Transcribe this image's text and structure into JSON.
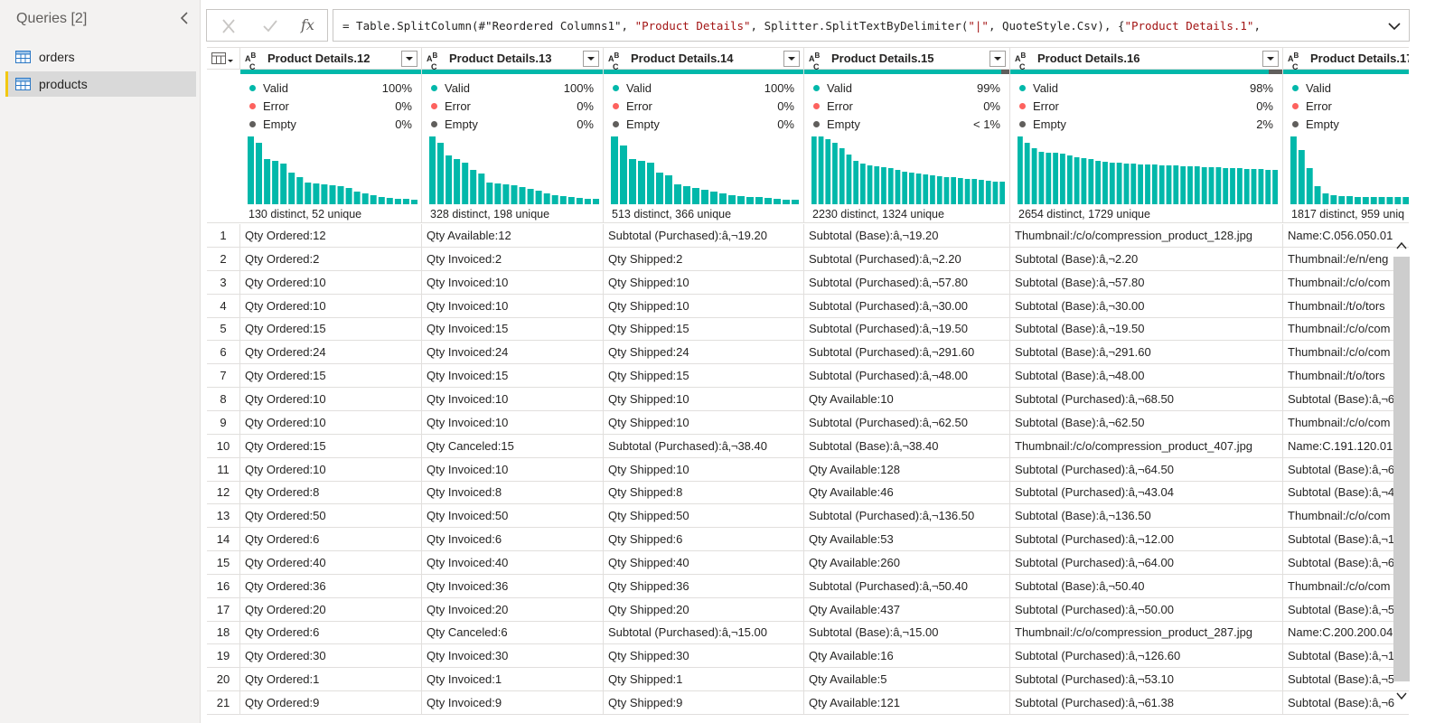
{
  "queries": {
    "title": "Queries [2]",
    "items": [
      {
        "label": "orders",
        "selected": false
      },
      {
        "label": "products",
        "selected": true
      }
    ]
  },
  "formula": {
    "parts": [
      {
        "t": "= Table.SplitColumn(#\"Reordered Columns1\", ",
        "s": false
      },
      {
        "t": "\"Product Details\"",
        "s": true
      },
      {
        "t": ", Splitter.SplitTextByDelimiter(",
        "s": false
      },
      {
        "t": "\"|\"",
        "s": true
      },
      {
        "t": ", QuoteStyle.Csv), {",
        "s": false
      },
      {
        "t": "\"Product Details.1\"",
        "s": true
      },
      {
        "t": ",",
        "s": false
      }
    ],
    "fx_label": "fx"
  },
  "colors": {
    "valid": "#01b8aa",
    "error": "#fd625e",
    "empty": "#605e5c",
    "accent": "#f2c811"
  },
  "columns": [
    {
      "name": "Product Details.12",
      "valid": "100%",
      "error": "0%",
      "empty": "0%",
      "errfrac": 0,
      "distinct": "130 distinct, 52 unique",
      "hist": [
        75,
        68,
        50,
        48,
        45,
        35,
        30,
        24,
        23,
        22,
        21,
        20,
        18,
        14,
        12,
        10,
        8,
        7,
        6,
        6,
        5
      ]
    },
    {
      "name": "Product Details.13",
      "valid": "100%",
      "error": "0%",
      "empty": "0%",
      "errfrac": 0,
      "distinct": "328 distinct, 198 unique",
      "hist": [
        75,
        68,
        54,
        50,
        46,
        38,
        34,
        24,
        23,
        22,
        21,
        19,
        17,
        15,
        12,
        10,
        9,
        8,
        7,
        6,
        6
      ]
    },
    {
      "name": "Product Details.14",
      "valid": "100%",
      "error": "0%",
      "empty": "0%",
      "errfrac": 0,
      "distinct": "513 distinct, 366 unique",
      "hist": [
        75,
        65,
        50,
        48,
        46,
        35,
        32,
        22,
        20,
        18,
        16,
        14,
        12,
        10,
        9,
        8,
        8,
        7,
        6,
        5,
        5
      ]
    },
    {
      "name": "Product Details.15",
      "valid": "99%",
      "error": "0%",
      "empty": "< 1%",
      "errfrac": 0.04,
      "distinct": "2230 distinct, 1324 unique",
      "hist": [
        75,
        75,
        72,
        68,
        62,
        55,
        48,
        45,
        43,
        42,
        41,
        40,
        38,
        36,
        35,
        34,
        33,
        32,
        31,
        30,
        30,
        29,
        28,
        28,
        27,
        26,
        25,
        25
      ]
    },
    {
      "name": "Product Details.16",
      "valid": "98%",
      "error": "0%",
      "empty": "2%",
      "errfrac": 0.05,
      "distinct": "2654 distinct, 1729 unique",
      "hist": [
        75,
        68,
        62,
        58,
        57,
        57,
        56,
        54,
        52,
        51,
        50,
        48,
        47,
        46,
        46,
        45,
        45,
        44,
        44,
        44,
        43,
        43,
        43,
        42,
        42,
        42,
        41,
        41,
        41,
        40,
        40,
        40,
        39,
        39,
        39,
        38,
        38
      ]
    },
    {
      "name": "Product Details.17",
      "valid": "",
      "error": "",
      "empty": "",
      "errfrac": 0,
      "distinct": "1817 distinct, 959 uniq",
      "hist": [
        75,
        60,
        40,
        20,
        12,
        10,
        9,
        9,
        8,
        8,
        8,
        8,
        8,
        8,
        8,
        8
      ]
    }
  ],
  "quality_labels": {
    "valid": "Valid",
    "error": "Error",
    "empty": "Empty"
  },
  "rows": [
    [
      "1",
      "Qty Ordered:12",
      "Qty Available:12",
      "Subtotal (Purchased):â‚¬19.20",
      "Subtotal (Base):â‚¬19.20",
      "Thumbnail:/c/o/compression_product_128.jpg",
      "Name:C.056.050.01"
    ],
    [
      "2",
      "Qty Ordered:2",
      "Qty Invoiced:2",
      "Qty Shipped:2",
      "Subtotal (Purchased):â‚¬2.20",
      "Subtotal (Base):â‚¬2.20",
      "Thumbnail:/e/n/eng"
    ],
    [
      "3",
      "Qty Ordered:10",
      "Qty Invoiced:10",
      "Qty Shipped:10",
      "Subtotal (Purchased):â‚¬57.80",
      "Subtotal (Base):â‚¬57.80",
      "Thumbnail:/c/o/com"
    ],
    [
      "4",
      "Qty Ordered:10",
      "Qty Invoiced:10",
      "Qty Shipped:10",
      "Subtotal (Purchased):â‚¬30.00",
      "Subtotal (Base):â‚¬30.00",
      "Thumbnail:/t/o/tors"
    ],
    [
      "5",
      "Qty Ordered:15",
      "Qty Invoiced:15",
      "Qty Shipped:15",
      "Subtotal (Purchased):â‚¬19.50",
      "Subtotal (Base):â‚¬19.50",
      "Thumbnail:/c/o/com"
    ],
    [
      "6",
      "Qty Ordered:24",
      "Qty Invoiced:24",
      "Qty Shipped:24",
      "Subtotal (Purchased):â‚¬291.60",
      "Subtotal (Base):â‚¬291.60",
      "Thumbnail:/c/o/com"
    ],
    [
      "7",
      "Qty Ordered:15",
      "Qty Invoiced:15",
      "Qty Shipped:15",
      "Subtotal (Purchased):â‚¬48.00",
      "Subtotal (Base):â‚¬48.00",
      "Thumbnail:/t/o/tors"
    ],
    [
      "8",
      "Qty Ordered:10",
      "Qty Invoiced:10",
      "Qty Shipped:10",
      "Qty Available:10",
      "Subtotal (Purchased):â‚¬68.50",
      "Subtotal (Base):â‚¬6"
    ],
    [
      "9",
      "Qty Ordered:10",
      "Qty Invoiced:10",
      "Qty Shipped:10",
      "Subtotal (Purchased):â‚¬62.50",
      "Subtotal (Base):â‚¬62.50",
      "Thumbnail:/c/o/com"
    ],
    [
      "10",
      "Qty Ordered:15",
      "Qty Canceled:15",
      "Subtotal (Purchased):â‚¬38.40",
      "Subtotal (Base):â‚¬38.40",
      "Thumbnail:/c/o/compression_product_407.jpg",
      "Name:C.191.120.01"
    ],
    [
      "11",
      "Qty Ordered:10",
      "Qty Invoiced:10",
      "Qty Shipped:10",
      "Qty Available:128",
      "Subtotal (Purchased):â‚¬64.50",
      "Subtotal (Base):â‚¬6"
    ],
    [
      "12",
      "Qty Ordered:8",
      "Qty Invoiced:8",
      "Qty Shipped:8",
      "Qty Available:46",
      "Subtotal (Purchased):â‚¬43.04",
      "Subtotal (Base):â‚¬4"
    ],
    [
      "13",
      "Qty Ordered:50",
      "Qty Invoiced:50",
      "Qty Shipped:50",
      "Subtotal (Purchased):â‚¬136.50",
      "Subtotal (Base):â‚¬136.50",
      "Thumbnail:/c/o/com"
    ],
    [
      "14",
      "Qty Ordered:6",
      "Qty Invoiced:6",
      "Qty Shipped:6",
      "Qty Available:53",
      "Subtotal (Purchased):â‚¬12.00",
      "Subtotal (Base):â‚¬1"
    ],
    [
      "15",
      "Qty Ordered:40",
      "Qty Invoiced:40",
      "Qty Shipped:40",
      "Qty Available:260",
      "Subtotal (Purchased):â‚¬64.00",
      "Subtotal (Base):â‚¬6"
    ],
    [
      "16",
      "Qty Ordered:36",
      "Qty Invoiced:36",
      "Qty Shipped:36",
      "Subtotal (Purchased):â‚¬50.40",
      "Subtotal (Base):â‚¬50.40",
      "Thumbnail:/c/o/com"
    ],
    [
      "17",
      "Qty Ordered:20",
      "Qty Invoiced:20",
      "Qty Shipped:20",
      "Qty Available:437",
      "Subtotal (Purchased):â‚¬50.00",
      "Subtotal (Base):â‚¬5"
    ],
    [
      "18",
      "Qty Ordered:6",
      "Qty Canceled:6",
      "Subtotal (Purchased):â‚¬15.00",
      "Subtotal (Base):â‚¬15.00",
      "Thumbnail:/c/o/compression_product_287.jpg",
      "Name:C.200.200.04"
    ],
    [
      "19",
      "Qty Ordered:30",
      "Qty Invoiced:30",
      "Qty Shipped:30",
      "Qty Available:16",
      "Subtotal (Purchased):â‚¬126.60",
      "Subtotal (Base):â‚¬1"
    ],
    [
      "20",
      "Qty Ordered:1",
      "Qty Invoiced:1",
      "Qty Shipped:1",
      "Qty Available:5",
      "Subtotal (Purchased):â‚¬53.10",
      "Subtotal (Base):â‚¬5"
    ],
    [
      "21",
      "Qty Ordered:9",
      "Qty Invoiced:9",
      "Qty Shipped:9",
      "Qty Available:121",
      "Subtotal (Purchased):â‚¬61.38",
      "Subtotal (Base):â‚¬6"
    ]
  ]
}
